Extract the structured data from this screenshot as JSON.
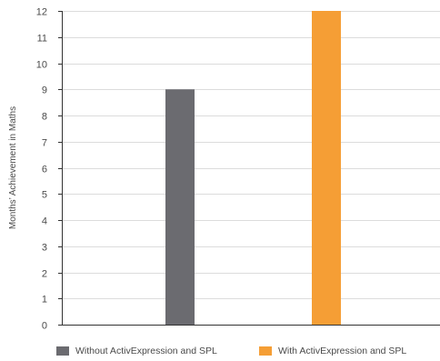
{
  "chart_data": {
    "type": "bar",
    "title": "",
    "xlabel": "",
    "ylabel": "Months’ Achievement in Maths",
    "ylim": [
      0,
      12
    ],
    "yticks": [
      "0",
      "1",
      "2",
      "3",
      "4",
      "5",
      "6",
      "7",
      "8",
      "9",
      "10",
      "11",
      "12"
    ],
    "grid": "horizontal",
    "legend_position": "bottom",
    "series": [
      {
        "name": "Without ActivExpression and SPL",
        "values": [
          9
        ],
        "color": "#6b6b70"
      },
      {
        "name": "With ActivExpression and SPL",
        "values": [
          12
        ],
        "color": "#f59e35"
      }
    ]
  }
}
